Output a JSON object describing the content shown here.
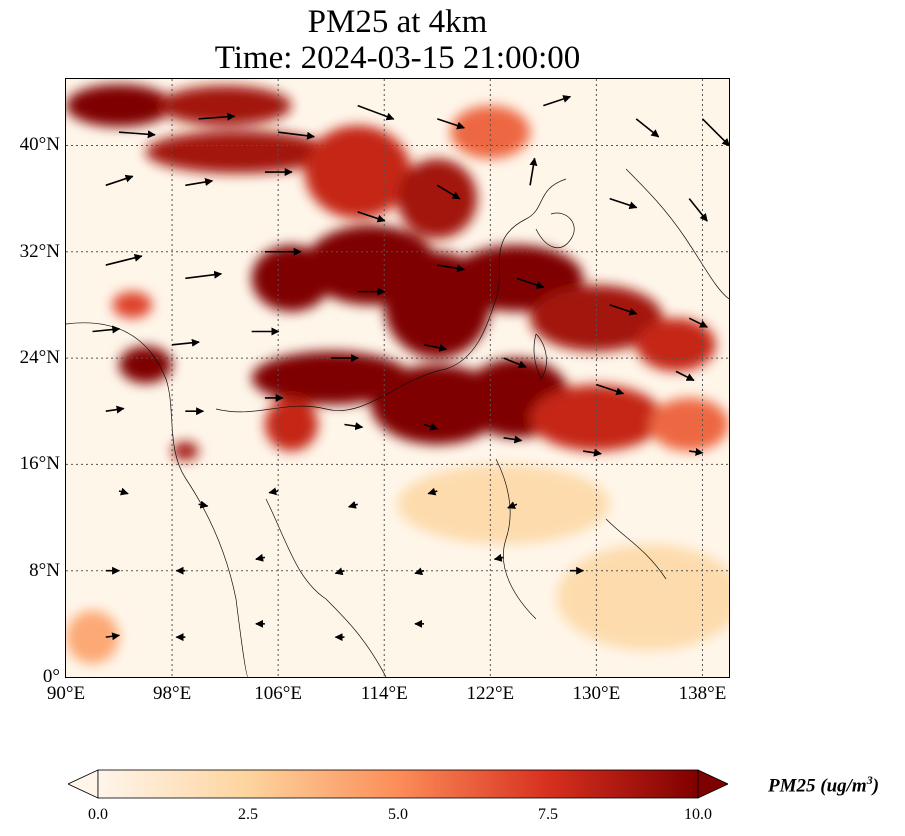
{
  "title": {
    "line1": "PM25 at 4km",
    "line2": "Time: 2024-03-15 21:00:00"
  },
  "map": {
    "lon_range": [
      90,
      140
    ],
    "lat_range": [
      0,
      45
    ],
    "gridlines": true,
    "lat_ticks": [
      {
        "value": 0,
        "label": "0°"
      },
      {
        "value": 8,
        "label": "8°N"
      },
      {
        "value": 16,
        "label": "16°N"
      },
      {
        "value": 24,
        "label": "24°N"
      },
      {
        "value": 32,
        "label": "32°N"
      },
      {
        "value": 40,
        "label": "40°N"
      }
    ],
    "lon_ticks": [
      {
        "value": 90,
        "label": "90°E"
      },
      {
        "value": 98,
        "label": "98°E"
      },
      {
        "value": 106,
        "label": "106°E"
      },
      {
        "value": 114,
        "label": "114°E"
      },
      {
        "value": 122,
        "label": "122°E"
      },
      {
        "value": 130,
        "label": "130°E"
      },
      {
        "value": 138,
        "label": "138°E"
      }
    ],
    "plumes": [
      {
        "lon": 94,
        "lat": 43,
        "rlon": 4,
        "rlat": 1.6,
        "v": 10
      },
      {
        "lon": 102,
        "lat": 43,
        "rlon": 5,
        "rlat": 1.5,
        "v": 9
      },
      {
        "lon": 103,
        "lat": 39.5,
        "rlon": 7,
        "rlat": 1.6,
        "v": 9
      },
      {
        "lon": 112,
        "lat": 38,
        "rlon": 4,
        "rlat": 3.5,
        "v": 8
      },
      {
        "lon": 118,
        "lat": 36,
        "rlon": 3,
        "rlat": 3,
        "v": 9
      },
      {
        "lon": 122,
        "lat": 41,
        "rlon": 3,
        "rlat": 2,
        "v": 6
      },
      {
        "lon": 107,
        "lat": 30,
        "rlon": 3,
        "rlat": 2.5,
        "v": 10
      },
      {
        "lon": 113,
        "lat": 31,
        "rlon": 5,
        "rlat": 3,
        "v": 10
      },
      {
        "lon": 118,
        "lat": 28,
        "rlon": 4,
        "rlat": 4,
        "v": 10
      },
      {
        "lon": 124,
        "lat": 30,
        "rlon": 5,
        "rlat": 2.5,
        "v": 10
      },
      {
        "lon": 130,
        "lat": 27,
        "rlon": 5,
        "rlat": 2.5,
        "v": 9
      },
      {
        "lon": 136,
        "lat": 25,
        "rlon": 3,
        "rlat": 2,
        "v": 8
      },
      {
        "lon": 110,
        "lat": 22.5,
        "rlon": 6,
        "rlat": 2,
        "v": 10
      },
      {
        "lon": 118,
        "lat": 20.5,
        "rlon": 5,
        "rlat": 3,
        "v": 10
      },
      {
        "lon": 124,
        "lat": 21,
        "rlon": 4,
        "rlat": 3,
        "v": 10
      },
      {
        "lon": 130,
        "lat": 19.5,
        "rlon": 5,
        "rlat": 2.5,
        "v": 8
      },
      {
        "lon": 137,
        "lat": 19,
        "rlon": 3,
        "rlat": 2,
        "v": 6
      },
      {
        "lon": 107,
        "lat": 19,
        "rlon": 2,
        "rlat": 2,
        "v": 8
      },
      {
        "lon": 96,
        "lat": 23.5,
        "rlon": 2,
        "rlat": 1.4,
        "v": 10
      },
      {
        "lon": 95,
        "lat": 28,
        "rlon": 1.5,
        "rlat": 1,
        "v": 7
      },
      {
        "lon": 99,
        "lat": 17,
        "rlon": 1,
        "rlat": 0.7,
        "v": 9
      },
      {
        "lon": 92,
        "lat": 3,
        "rlon": 2,
        "rlat": 2,
        "v": 4
      },
      {
        "lon": 134,
        "lat": 6,
        "rlon": 7,
        "rlat": 4,
        "v": 2
      },
      {
        "lon": 123,
        "lat": 13,
        "rlon": 8,
        "rlat": 3,
        "v": 2
      }
    ],
    "wind_vectors": [
      {
        "lon": 94,
        "lat": 41,
        "u": 4,
        "v": -0.3
      },
      {
        "lon": 100,
        "lat": 42,
        "u": 4,
        "v": 0.3
      },
      {
        "lon": 106,
        "lat": 41,
        "u": 4,
        "v": -0.5
      },
      {
        "lon": 112,
        "lat": 43,
        "u": 4,
        "v": -1.5
      },
      {
        "lon": 118,
        "lat": 42,
        "u": 3,
        "v": -1
      },
      {
        "lon": 126,
        "lat": 43,
        "u": 3,
        "v": 1
      },
      {
        "lon": 133,
        "lat": 42,
        "u": 2.5,
        "v": -2
      },
      {
        "lon": 138,
        "lat": 42,
        "u": 3,
        "v": -3
      },
      {
        "lon": 93,
        "lat": 37,
        "u": 3,
        "v": 1
      },
      {
        "lon": 99,
        "lat": 37,
        "u": 3,
        "v": 0.5
      },
      {
        "lon": 105,
        "lat": 38,
        "u": 3,
        "v": 0
      },
      {
        "lon": 112,
        "lat": 35,
        "u": 3,
        "v": -1
      },
      {
        "lon": 118,
        "lat": 37,
        "u": 2.5,
        "v": -1.5
      },
      {
        "lon": 125,
        "lat": 37,
        "u": 0.5,
        "v": 3
      },
      {
        "lon": 131,
        "lat": 36,
        "u": 3,
        "v": -1
      },
      {
        "lon": 137,
        "lat": 36,
        "u": 2,
        "v": -2.5
      },
      {
        "lon": 93,
        "lat": 31,
        "u": 4,
        "v": 1
      },
      {
        "lon": 99,
        "lat": 30,
        "u": 4,
        "v": 0.5
      },
      {
        "lon": 105,
        "lat": 32,
        "u": 4,
        "v": 0
      },
      {
        "lon": 112,
        "lat": 29,
        "u": 3,
        "v": 0
      },
      {
        "lon": 118,
        "lat": 31,
        "u": 3,
        "v": -0.5
      },
      {
        "lon": 124,
        "lat": 30,
        "u": 3,
        "v": -1
      },
      {
        "lon": 131,
        "lat": 28,
        "u": 3,
        "v": -1
      },
      {
        "lon": 137,
        "lat": 27,
        "u": 2,
        "v": -1
      },
      {
        "lon": 92,
        "lat": 26,
        "u": 3,
        "v": 0.3
      },
      {
        "lon": 98,
        "lat": 25,
        "u": 3,
        "v": 0.3
      },
      {
        "lon": 104,
        "lat": 26,
        "u": 3,
        "v": 0
      },
      {
        "lon": 110,
        "lat": 24,
        "u": 3,
        "v": 0
      },
      {
        "lon": 117,
        "lat": 25,
        "u": 2.5,
        "v": -0.5
      },
      {
        "lon": 123,
        "lat": 24,
        "u": 2.5,
        "v": -1
      },
      {
        "lon": 130,
        "lat": 22,
        "u": 3,
        "v": -1
      },
      {
        "lon": 136,
        "lat": 23,
        "u": 2,
        "v": -1
      },
      {
        "lon": 93,
        "lat": 20,
        "u": 2,
        "v": 0.3
      },
      {
        "lon": 99,
        "lat": 20,
        "u": 2,
        "v": 0
      },
      {
        "lon": 105,
        "lat": 21,
        "u": 2,
        "v": 0
      },
      {
        "lon": 111,
        "lat": 19,
        "u": 2,
        "v": -0.3
      },
      {
        "lon": 117,
        "lat": 19,
        "u": 1.5,
        "v": -0.5
      },
      {
        "lon": 123,
        "lat": 18,
        "u": 2,
        "v": -0.3
      },
      {
        "lon": 129,
        "lat": 17,
        "u": 2,
        "v": -0.3
      },
      {
        "lon": 137,
        "lat": 17,
        "u": 1.5,
        "v": -0.2
      },
      {
        "lon": 94,
        "lat": 14,
        "u": 1,
        "v": -0.3
      },
      {
        "lon": 100,
        "lat": 13,
        "u": 1,
        "v": -0.2
      },
      {
        "lon": 106,
        "lat": 14,
        "u": -1,
        "v": -0.2
      },
      {
        "lon": 112,
        "lat": 13,
        "u": -1,
        "v": -0.3
      },
      {
        "lon": 118,
        "lat": 14,
        "u": -1,
        "v": -0.3
      },
      {
        "lon": 124,
        "lat": 13,
        "u": -1,
        "v": -0.4
      },
      {
        "lon": 93,
        "lat": 8,
        "u": 1.5,
        "v": 0
      },
      {
        "lon": 99,
        "lat": 8,
        "u": -1,
        "v": 0
      },
      {
        "lon": 105,
        "lat": 9,
        "u": -1,
        "v": -0.2
      },
      {
        "lon": 111,
        "lat": 8,
        "u": -1,
        "v": -0.3
      },
      {
        "lon": 117,
        "lat": 8,
        "u": -1,
        "v": -0.3
      },
      {
        "lon": 123,
        "lat": 9,
        "u": -1,
        "v": -0.2
      },
      {
        "lon": 128,
        "lat": 8,
        "u": 1.5,
        "v": 0
      },
      {
        "lon": 93,
        "lat": 3,
        "u": 1.5,
        "v": 0.2
      },
      {
        "lon": 99,
        "lat": 3,
        "u": -1,
        "v": 0
      },
      {
        "lon": 105,
        "lat": 4,
        "u": -1,
        "v": 0
      },
      {
        "lon": 111,
        "lat": 3,
        "u": -1,
        "v": 0
      },
      {
        "lon": 117,
        "lat": 4,
        "u": -1,
        "v": 0
      }
    ],
    "land_color": "#f4d6a6",
    "plume_color_scale": [
      "#fff5eb",
      "#fdd49e",
      "#fc8d59",
      "#d7301f",
      "#7f0000"
    ]
  },
  "colorbar": {
    "label_main": "PM25 (ug/m",
    "label_exp": "3",
    "label_close": ")",
    "min": 0.0,
    "max": 10.0,
    "ticks": [
      {
        "value": 0.0,
        "label": "0.0"
      },
      {
        "value": 2.5,
        "label": "2.5"
      },
      {
        "value": 5.0,
        "label": "5.0"
      },
      {
        "value": 7.5,
        "label": "7.5"
      },
      {
        "value": 10.0,
        "label": "10.0"
      }
    ],
    "extend": "both"
  }
}
